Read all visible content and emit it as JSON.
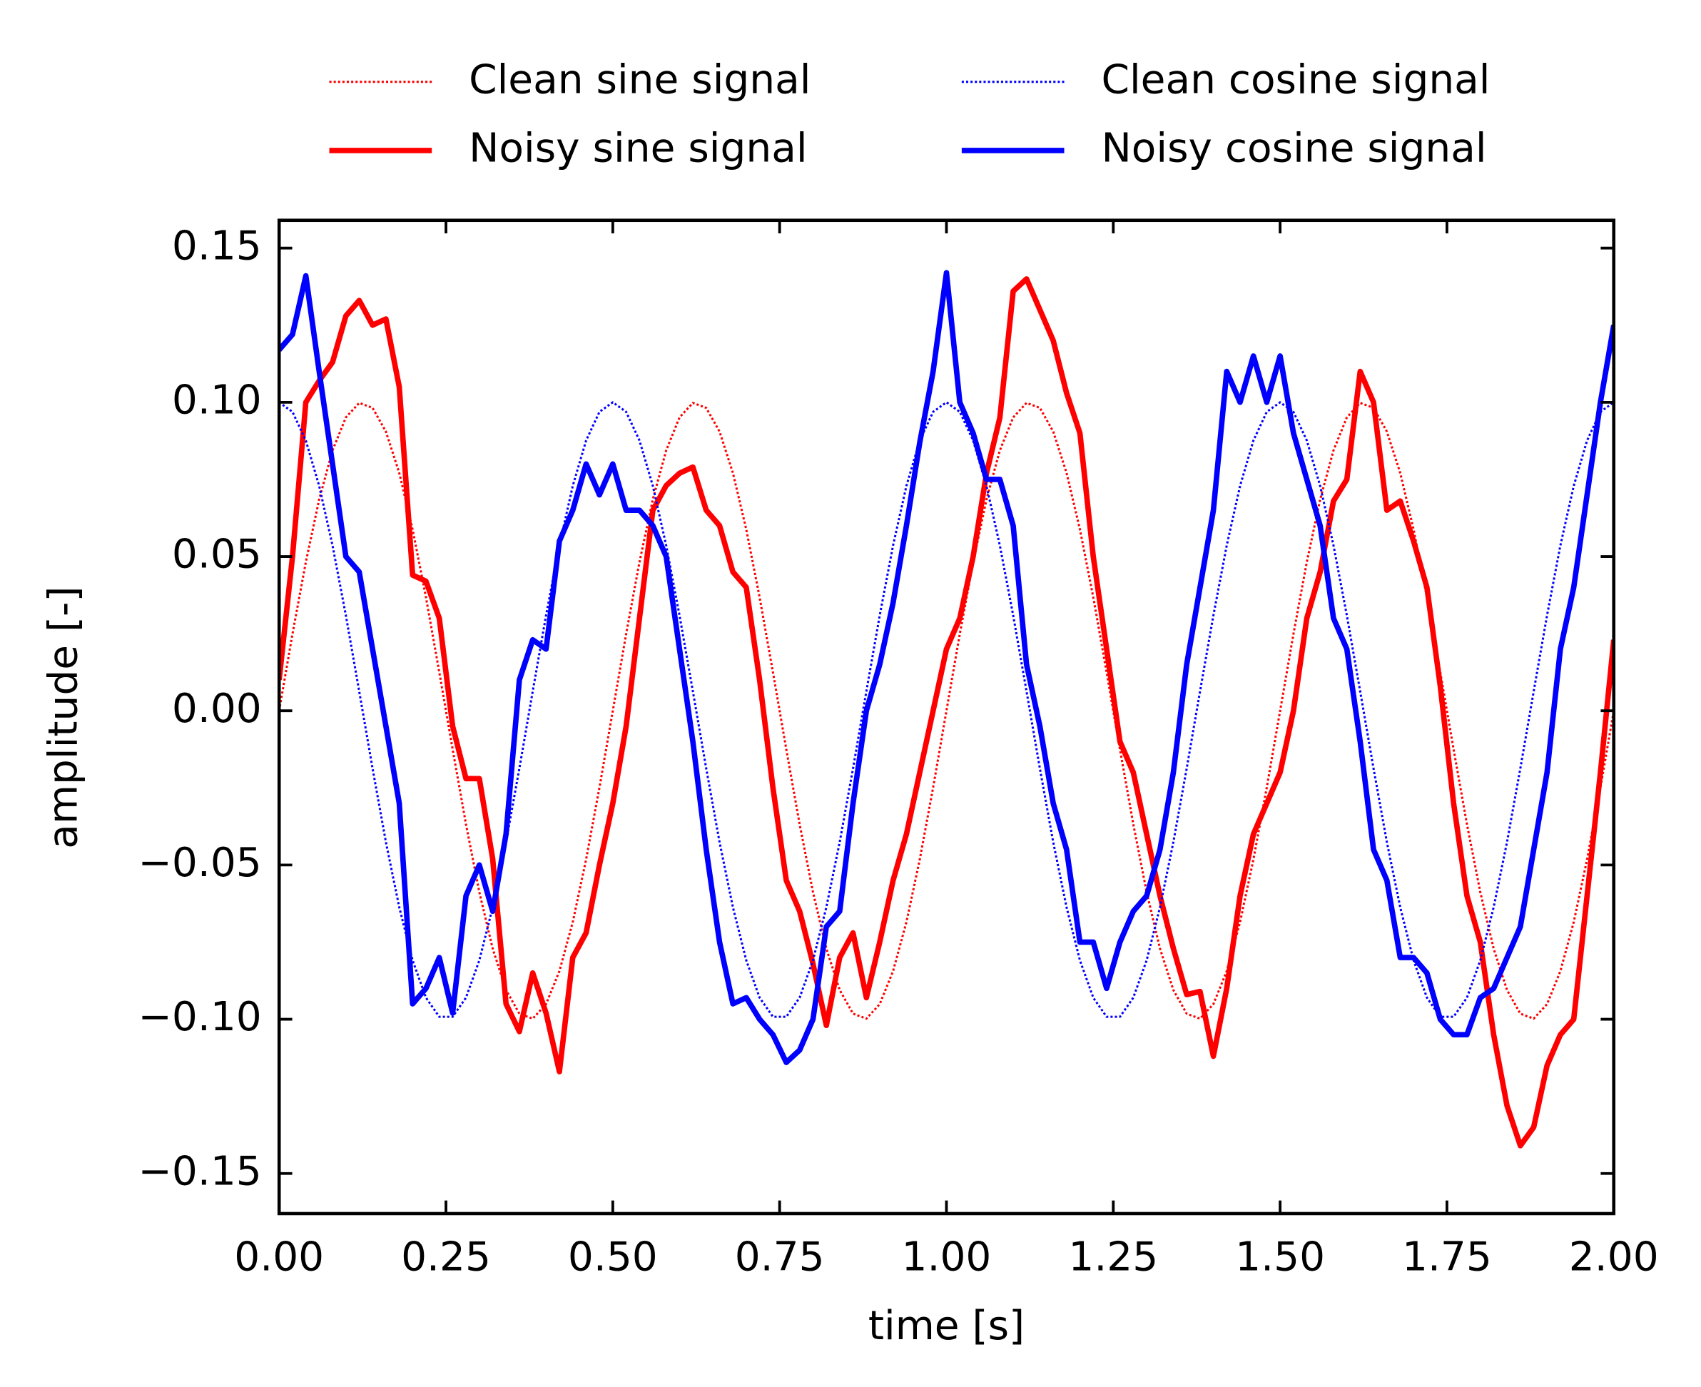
{
  "chart_data": {
    "type": "line",
    "xlabel": "time [s]",
    "ylabel": "amplitude [-]",
    "x": [
      0,
      0.02,
      0.04,
      0.06,
      0.08,
      0.1,
      0.12,
      0.14,
      0.16,
      0.18,
      0.2,
      0.22,
      0.24,
      0.26,
      0.28,
      0.3,
      0.32,
      0.34,
      0.36,
      0.38,
      0.4,
      0.42,
      0.44,
      0.46,
      0.48,
      0.5,
      0.52,
      0.54,
      0.56,
      0.58,
      0.6,
      0.62,
      0.64,
      0.66,
      0.68,
      0.7,
      0.72,
      0.74,
      0.76,
      0.78,
      0.8,
      0.82,
      0.84,
      0.86,
      0.88,
      0.9,
      0.92,
      0.94,
      0.96,
      0.98,
      1.0,
      1.02,
      1.04,
      1.06,
      1.08,
      1.1,
      1.12,
      1.14,
      1.16,
      1.18,
      1.2,
      1.22,
      1.24,
      1.26,
      1.28,
      1.3,
      1.32,
      1.34,
      1.36,
      1.38,
      1.4,
      1.42,
      1.44,
      1.46,
      1.48,
      1.5,
      1.52,
      1.54,
      1.56,
      1.58,
      1.6,
      1.62,
      1.64,
      1.66,
      1.68,
      1.7,
      1.72,
      1.74,
      1.76,
      1.78,
      1.8,
      1.82,
      1.84,
      1.86,
      1.88,
      1.9,
      1.92,
      1.94,
      1.96,
      1.98,
      2.0
    ],
    "series": [
      {
        "name": "Clean sine signal",
        "color": "#ff0000",
        "linestyle": "dotted",
        "values": [
          0,
          0.0249,
          0.0482,
          0.0685,
          0.0844,
          0.0951,
          0.0998,
          0.0982,
          0.0905,
          0.0771,
          0.0588,
          0.0368,
          0.0125,
          -0.0125,
          -0.0368,
          -0.0588,
          -0.0771,
          -0.0905,
          -0.0982,
          -0.0998,
          -0.0951,
          -0.0844,
          -0.0685,
          -0.0482,
          -0.0249,
          0,
          0.0249,
          0.0482,
          0.0685,
          0.0844,
          0.0951,
          0.0998,
          0.0982,
          0.0905,
          0.0771,
          0.0588,
          0.0368,
          0.0125,
          -0.0125,
          -0.0368,
          -0.0588,
          -0.0771,
          -0.0905,
          -0.0982,
          -0.0998,
          -0.0951,
          -0.0844,
          -0.0685,
          -0.0482,
          -0.0249,
          0,
          0.0249,
          0.0482,
          0.0685,
          0.0844,
          0.0951,
          0.0998,
          0.0982,
          0.0905,
          0.0771,
          0.0588,
          0.0368,
          0.0125,
          -0.0125,
          -0.0368,
          -0.0588,
          -0.0771,
          -0.0905,
          -0.0982,
          -0.0998,
          -0.0951,
          -0.0844,
          -0.0685,
          -0.0482,
          -0.0249,
          0,
          0.0249,
          0.0482,
          0.0685,
          0.0844,
          0.0951,
          0.0998,
          0.0982,
          0.0905,
          0.0771,
          0.0588,
          0.0368,
          0.0125,
          -0.0125,
          -0.0368,
          -0.0588,
          -0.0771,
          -0.0905,
          -0.0982,
          -0.0998,
          -0.0951,
          -0.0844,
          -0.0685,
          -0.0482,
          -0.0249,
          0
        ]
      },
      {
        "name": "Noisy sine signal",
        "color": "#ff0000",
        "linestyle": "solid",
        "values": [
          0.01,
          0.05,
          0.1,
          0.107,
          0.113,
          0.128,
          0.133,
          0.125,
          0.127,
          0.105,
          0.044,
          0.042,
          0.03,
          -0.005,
          -0.022,
          -0.022,
          -0.048,
          -0.095,
          -0.104,
          -0.085,
          -0.098,
          -0.117,
          -0.08,
          -0.072,
          -0.05,
          -0.03,
          -0.005,
          0.03,
          0.065,
          0.073,
          0.077,
          0.079,
          0.065,
          0.06,
          0.045,
          0.04,
          0.01,
          -0.025,
          -0.055,
          -0.065,
          -0.082,
          -0.102,
          -0.08,
          -0.072,
          -0.093,
          -0.075,
          -0.055,
          -0.04,
          -0.02,
          0.0,
          0.02,
          0.03,
          0.05,
          0.077,
          0.095,
          0.136,
          0.14,
          0.13,
          0.12,
          0.103,
          0.09,
          0.05,
          0.02,
          -0.01,
          -0.02,
          -0.04,
          -0.06,
          -0.077,
          -0.092,
          -0.091,
          -0.112,
          -0.09,
          -0.06,
          -0.04,
          -0.03,
          -0.02,
          0.0,
          0.03,
          0.045,
          0.068,
          0.075,
          0.11,
          0.1,
          0.065,
          0.068,
          0.055,
          0.04,
          0.008,
          -0.03,
          -0.06,
          -0.075,
          -0.105,
          -0.128,
          -0.141,
          -0.135,
          -0.115,
          -0.105,
          -0.1,
          -0.06,
          -0.02,
          0.023
        ]
      },
      {
        "name": "Clean cosine signal",
        "color": "#0000ff",
        "linestyle": "dotted",
        "values": [
          0.1,
          0.0969,
          0.0876,
          0.0729,
          0.0536,
          0.0309,
          0.0063,
          -0.0187,
          -0.0426,
          -0.0637,
          -0.0809,
          -0.093,
          -0.0992,
          -0.0992,
          -0.093,
          -0.0809,
          -0.0637,
          -0.0426,
          -0.0187,
          0.0063,
          0.0309,
          0.0536,
          0.0729,
          0.0876,
          0.0969,
          0.1,
          0.0969,
          0.0876,
          0.0729,
          0.0536,
          0.0309,
          0.0063,
          -0.0187,
          -0.0426,
          -0.0637,
          -0.0809,
          -0.093,
          -0.0992,
          -0.0992,
          -0.093,
          -0.0809,
          -0.0637,
          -0.0426,
          -0.0187,
          0.0063,
          0.0309,
          0.0536,
          0.0729,
          0.0876,
          0.0969,
          0.1,
          0.0969,
          0.0876,
          0.0729,
          0.0536,
          0.0309,
          0.0063,
          -0.0187,
          -0.0426,
          -0.0637,
          -0.0809,
          -0.093,
          -0.0992,
          -0.0992,
          -0.093,
          -0.0809,
          -0.0637,
          -0.0426,
          -0.0187,
          0.0063,
          0.0309,
          0.0536,
          0.0729,
          0.0876,
          0.0969,
          0.1,
          0.0969,
          0.0876,
          0.0729,
          0.0536,
          0.0309,
          0.0063,
          -0.0187,
          -0.0426,
          -0.0637,
          -0.0809,
          -0.093,
          -0.0992,
          -0.0992,
          -0.093,
          -0.0809,
          -0.0637,
          -0.0426,
          -0.0187,
          0.0063,
          0.0309,
          0.0536,
          0.0729,
          0.0876,
          0.0969,
          0.1
        ]
      },
      {
        "name": "Noisy cosine signal",
        "color": "#0000ff",
        "linestyle": "solid",
        "values": [
          0.117,
          0.122,
          0.141,
          0.11,
          0.08,
          0.05,
          0.045,
          0.02,
          -0.005,
          -0.03,
          -0.095,
          -0.09,
          -0.08,
          -0.098,
          -0.06,
          -0.05,
          -0.065,
          -0.04,
          0.01,
          0.023,
          0.02,
          0.055,
          0.065,
          0.08,
          0.07,
          0.08,
          0.065,
          0.065,
          0.06,
          0.05,
          0.02,
          -0.01,
          -0.045,
          -0.075,
          -0.095,
          -0.093,
          -0.1,
          -0.105,
          -0.114,
          -0.11,
          -0.1,
          -0.07,
          -0.065,
          -0.03,
          0.0,
          0.015,
          0.035,
          0.06,
          0.087,
          0.11,
          0.142,
          0.1,
          0.09,
          0.075,
          0.075,
          0.06,
          0.015,
          -0.005,
          -0.03,
          -0.045,
          -0.075,
          -0.075,
          -0.09,
          -0.075,
          -0.065,
          -0.06,
          -0.045,
          -0.02,
          0.015,
          0.04,
          0.065,
          0.11,
          0.1,
          0.115,
          0.1,
          0.115,
          0.09,
          0.075,
          0.06,
          0.03,
          0.02,
          -0.01,
          -0.045,
          -0.055,
          -0.08,
          -0.08,
          -0.085,
          -0.1,
          -0.105,
          -0.105,
          -0.093,
          -0.09,
          -0.08,
          -0.07,
          -0.045,
          -0.02,
          0.02,
          0.04,
          0.07,
          0.1,
          0.125
        ]
      }
    ],
    "xlim": [
      0,
      2
    ],
    "ylim": [
      -0.163,
      0.159
    ],
    "xticks": [
      {
        "value": 0,
        "label": "0.00"
      },
      {
        "value": 0.25,
        "label": "0.25"
      },
      {
        "value": 0.5,
        "label": "0.50"
      },
      {
        "value": 0.75,
        "label": "0.75"
      },
      {
        "value": 1,
        "label": "1.00"
      },
      {
        "value": 1.25,
        "label": "1.25"
      },
      {
        "value": 1.5,
        "label": "1.50"
      },
      {
        "value": 1.75,
        "label": "1.75"
      },
      {
        "value": 2,
        "label": "2.00"
      }
    ],
    "yticks": [
      {
        "value": -0.15,
        "label": "−0.15"
      },
      {
        "value": -0.1,
        "label": "−0.10"
      },
      {
        "value": -0.05,
        "label": "−0.05"
      },
      {
        "value": 0,
        "label": "0.00"
      },
      {
        "value": 0.05,
        "label": "0.05"
      },
      {
        "value": 0.1,
        "label": "0.10"
      },
      {
        "value": 0.15,
        "label": "0.15"
      }
    ],
    "legend": "top outside",
    "legend_columns": 2,
    "grid": false
  }
}
